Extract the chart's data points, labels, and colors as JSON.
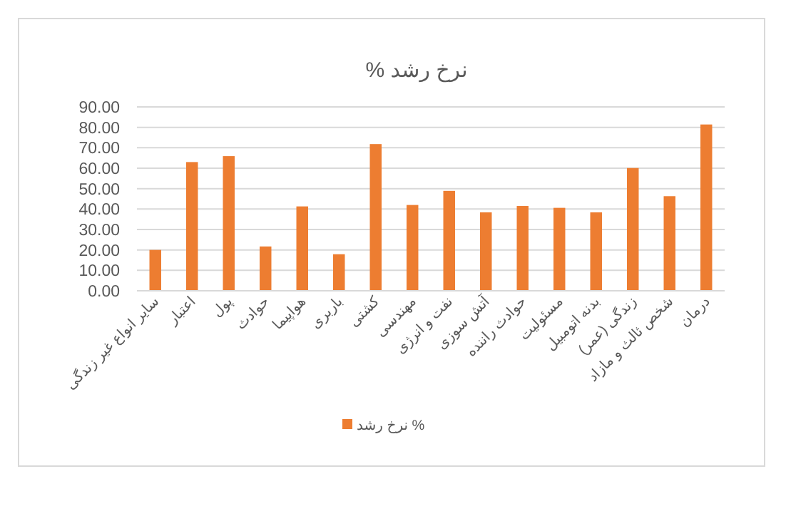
{
  "chart_data": {
    "type": "bar",
    "title": "نرخ رشد %",
    "categories": [
      "سایر انواع غیر زندگی",
      "اعتبار",
      "پول",
      "حوادث",
      "هواپیما",
      "باربری",
      "کشتی",
      "مهندسی",
      "نفت و انرژی",
      "آتش سوزی",
      "حوادث راننده",
      "مسئولیت",
      "بدنه اتومبیل",
      "زندگی (عمر)",
      "شخص ثالث و مازاد",
      "درمان"
    ],
    "series": [
      {
        "name": "نرخ رشد %",
        "color": "#ed7d31",
        "values": [
          20.0,
          63.0,
          65.9,
          21.7,
          41.3,
          17.9,
          71.8,
          42.0,
          48.9,
          38.4,
          41.5,
          40.6,
          38.4,
          60.1,
          46.3,
          81.4
        ]
      }
    ],
    "ylim": [
      0,
      90
    ],
    "yticks": [
      {
        "value": 0,
        "label": "0.00"
      },
      {
        "value": 10,
        "label": "10.00"
      },
      {
        "value": 20,
        "label": "20.00"
      },
      {
        "value": 30,
        "label": "30.00"
      },
      {
        "value": 40,
        "label": "40.00"
      },
      {
        "value": 50,
        "label": "50.00"
      },
      {
        "value": 60,
        "label": "60.00"
      },
      {
        "value": 70,
        "label": "70.00"
      },
      {
        "value": 80,
        "label": "80.00"
      },
      {
        "value": 90,
        "label": "90.00"
      }
    ],
    "grid": "y",
    "legend": "bottom"
  }
}
